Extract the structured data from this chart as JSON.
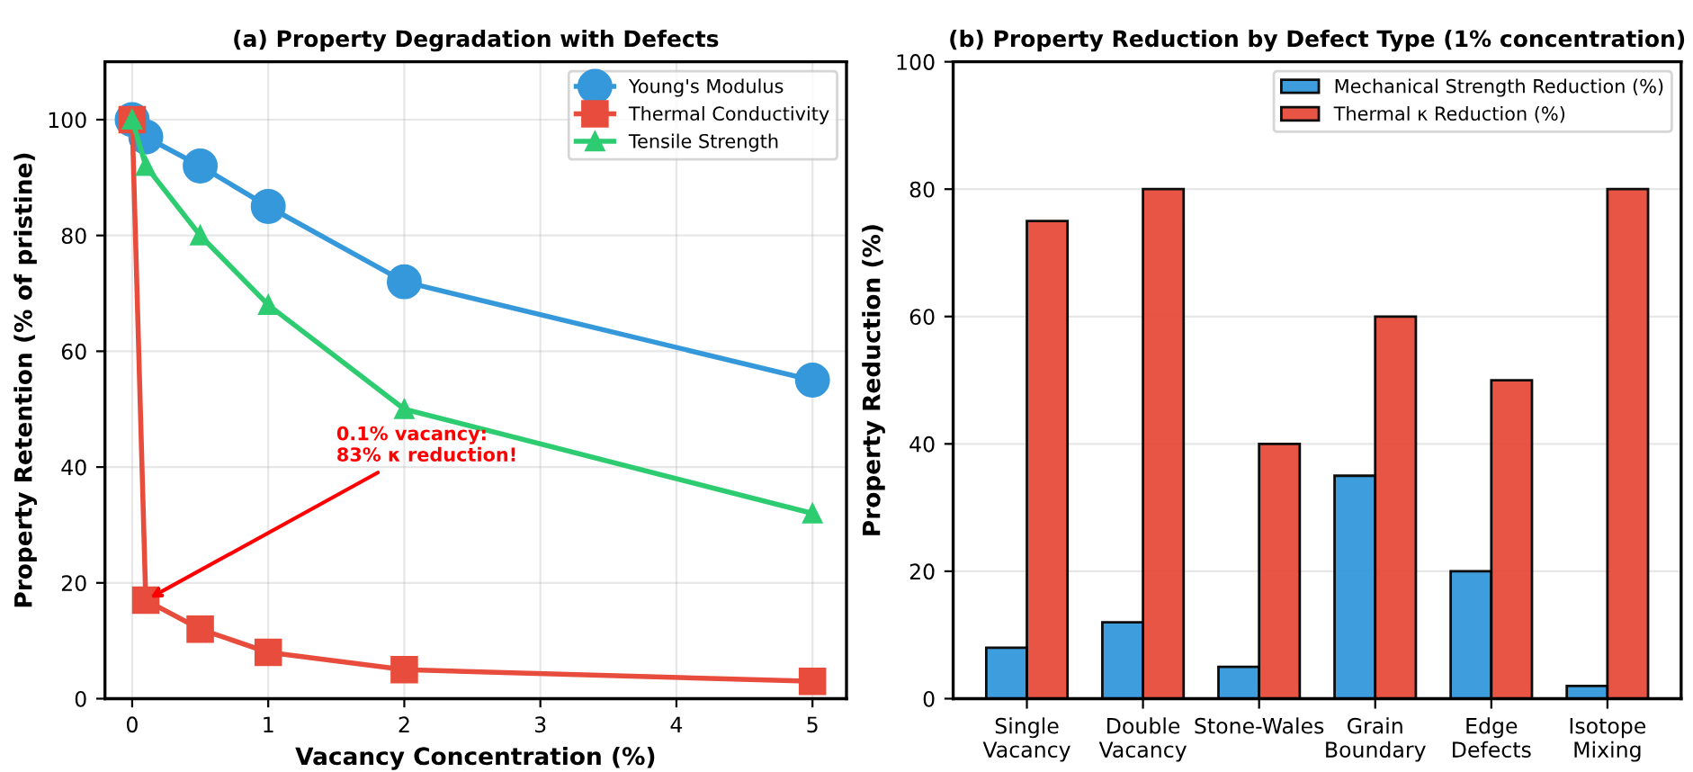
{
  "chart_data": [
    {
      "type": "line",
      "title": "(a) Property Degradation with Defects",
      "xlabel": "Vacancy Concentration (%)",
      "ylabel": "Property Retention (% of pristine)",
      "x": [
        0,
        0.1,
        0.5,
        1,
        2,
        5
      ],
      "series": [
        {
          "name": "Young's Modulus",
          "color": "#3498db",
          "values": [
            100,
            97,
            92,
            85,
            72,
            55
          ],
          "marker": "circle"
        },
        {
          "name": "Thermal Conductivity",
          "color": "#e74c3c",
          "values": [
            100,
            17,
            12,
            8,
            5,
            3
          ],
          "marker": "square"
        },
        {
          "name": "Tensile Strength",
          "color": "#2ecc71",
          "values": [
            100,
            92,
            80,
            68,
            50,
            32
          ],
          "marker": "triangle"
        }
      ],
      "xlim": [
        -0.2,
        5.25
      ],
      "ylim": [
        0,
        110
      ],
      "xticks": [
        0,
        1,
        2,
        3,
        4,
        5
      ],
      "yticks": [
        0,
        20,
        40,
        60,
        80,
        100
      ],
      "grid": true,
      "legend": "top right",
      "line_style": "solid",
      "annotations": [
        {
          "text": "0.1% vacancy:\n83% κ reduction!",
          "x": 0.1,
          "y": 17
        }
      ]
    },
    {
      "type": "bar",
      "title": "(b) Property Reduction by Defect Type (1% concentration)",
      "ylabel": "Property Reduction (%)",
      "categories": [
        "Single\nVacancy",
        "Double\nVacancy",
        "Stone-Wales",
        "Grain\nBoundary",
        "Edge\nDefects",
        "Isotope\nMixing"
      ],
      "series": [
        {
          "name": "Mechanical Strength Reduction (%)",
          "color": "#3498db",
          "values": [
            8,
            12,
            5,
            35,
            20,
            2
          ]
        },
        {
          "name": "Thermal κ Reduction (%)",
          "color": "#e74c3c",
          "values": [
            75,
            80,
            40,
            60,
            50,
            80
          ]
        }
      ],
      "ylim": [
        0,
        100
      ],
      "yticks": [
        0,
        20,
        40,
        60,
        80,
        100
      ],
      "grid": "y",
      "legend": "top right"
    }
  ]
}
